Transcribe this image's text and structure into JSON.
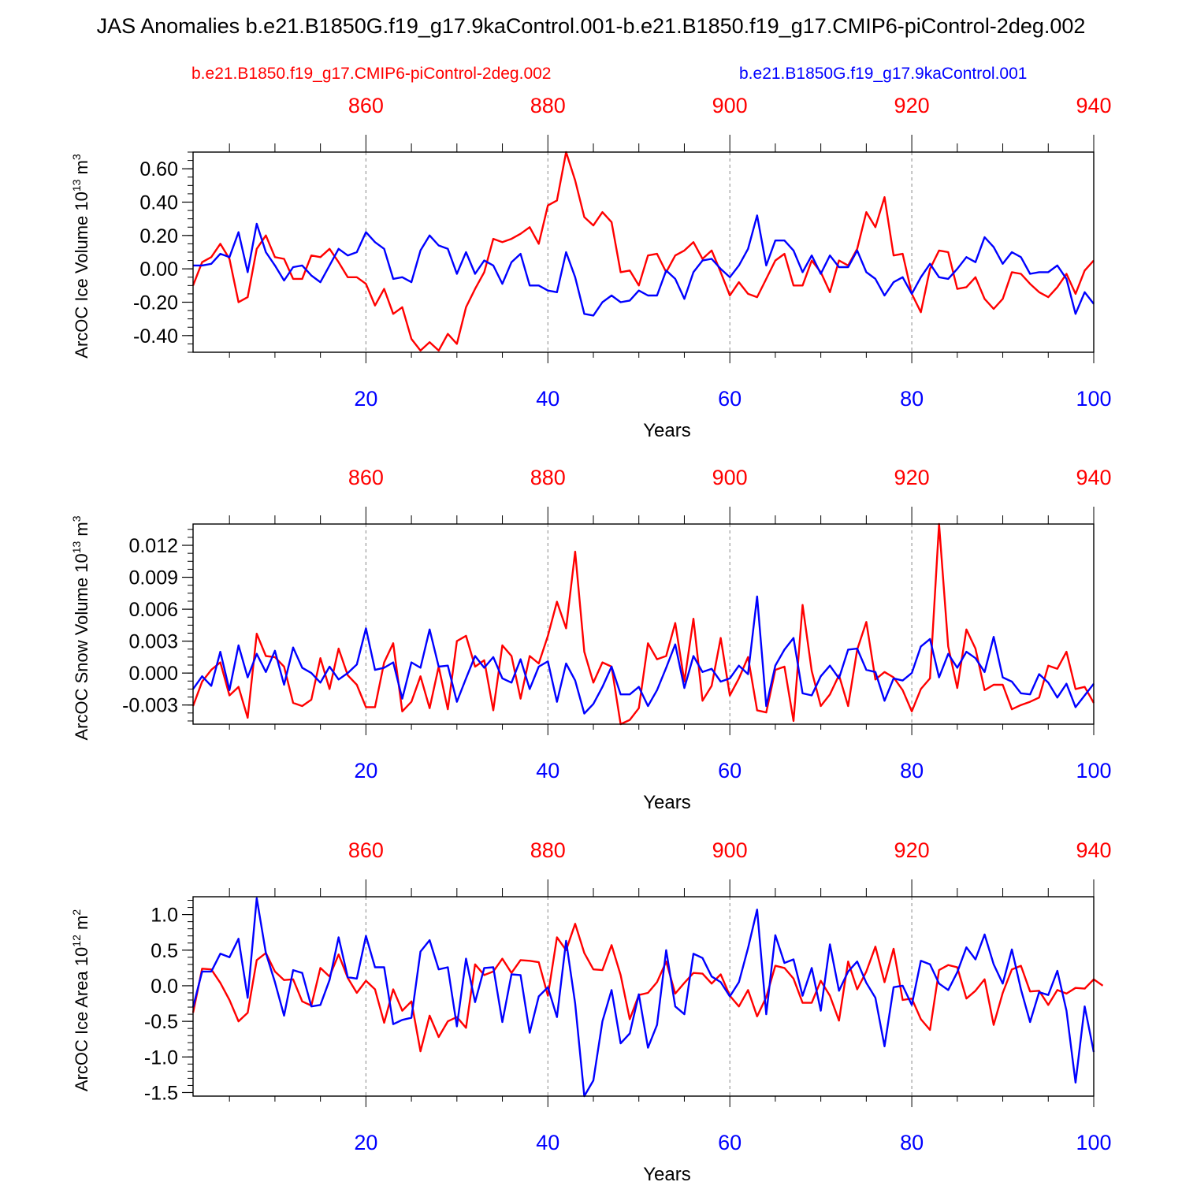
{
  "title": "JAS Anomalies b.e21.B1850G.f19_g17.9kaControl.001-b.e21.B1850.f19_g17.CMIP6-piControl-2deg.002",
  "legend": {
    "red_label": "b.e21.B1850.f19_g17.CMIP6-piControl-2deg.002",
    "blue_label": "b.e21.B1850G.f19_g17.9kaControl.001"
  },
  "colors": {
    "red": "#ff0000",
    "blue": "#0000ff",
    "axis": "#000000",
    "grid": "#888888"
  },
  "chart_data": [
    {
      "type": "line",
      "ylabel": "ArcOC Ice Volume 10",
      "ylabel_exp": "13",
      "ylabel_unit": " m",
      "ylabel_unit_exp": "3",
      "xlabel": "Years",
      "xlim": [
        1,
        100
      ],
      "ylim": [
        -0.5,
        0.7
      ],
      "yticks": [
        -0.4,
        -0.2,
        0.0,
        0.2,
        0.4,
        0.6
      ],
      "ytick_labels": [
        "-0.40",
        "-0.20",
        "0.00",
        "0.20",
        "0.40",
        "0.60"
      ],
      "yminor_step": 0.05,
      "xticks_bottom": [
        20,
        40,
        60,
        80,
        100
      ],
      "xticks_top": [
        860,
        880,
        900,
        920,
        940
      ],
      "top_year_offset": 840,
      "grid_x": [
        20,
        40,
        60,
        80
      ],
      "series": [
        {
          "name": "b.e21.B1850.f19_g17.CMIP6-piControl-2deg.002",
          "color": "red",
          "values": [
            -0.1,
            0.04,
            0.07,
            0.15,
            0.06,
            -0.2,
            -0.17,
            0.12,
            0.2,
            0.07,
            0.06,
            -0.06,
            -0.06,
            0.08,
            0.07,
            0.12,
            0.04,
            -0.05,
            -0.05,
            -0.09,
            -0.22,
            -0.12,
            -0.27,
            -0.23,
            -0.42,
            -0.49,
            -0.44,
            -0.49,
            -0.39,
            -0.45,
            -0.23,
            -0.12,
            -0.02,
            0.18,
            0.16,
            0.18,
            0.21,
            0.25,
            0.15,
            0.38,
            0.41,
            0.7,
            0.53,
            0.31,
            0.26,
            0.34,
            0.28,
            -0.02,
            -0.01,
            -0.1,
            0.08,
            0.09,
            -0.02,
            0.08,
            0.11,
            0.16,
            0.06,
            0.11,
            -0.02,
            -0.16,
            -0.08,
            -0.15,
            -0.17,
            -0.06,
            0.05,
            0.09,
            -0.1,
            -0.1,
            0.05,
            -0.02,
            -0.14,
            0.05,
            0.02,
            0.12,
            0.34,
            0.25,
            0.43,
            0.08,
            0.09,
            -0.15,
            -0.26,
            0.0,
            0.11,
            0.1,
            -0.12,
            -0.11,
            -0.05,
            -0.18,
            -0.24,
            -0.18,
            -0.02,
            -0.03,
            -0.09,
            -0.14,
            -0.17,
            -0.11,
            -0.03,
            -0.15,
            -0.01,
            0.05
          ]
        },
        {
          "name": "b.e21.B1850G.f19_g17.9kaControl.001",
          "color": "blue",
          "values": [
            0.02,
            0.02,
            0.03,
            0.09,
            0.07,
            0.22,
            -0.02,
            0.27,
            0.1,
            0.02,
            -0.07,
            0.01,
            0.02,
            -0.04,
            -0.08,
            0.02,
            0.12,
            0.08,
            0.1,
            0.22,
            0.16,
            0.12,
            -0.06,
            -0.05,
            -0.08,
            0.11,
            0.2,
            0.14,
            0.12,
            -0.03,
            0.1,
            -0.03,
            0.05,
            0.02,
            -0.09,
            0.04,
            0.09,
            -0.1,
            -0.1,
            -0.13,
            -0.14,
            0.1,
            -0.05,
            -0.27,
            -0.28,
            -0.2,
            -0.16,
            -0.2,
            -0.19,
            -0.13,
            -0.16,
            -0.16,
            -0.01,
            -0.06,
            -0.18,
            -0.02,
            0.05,
            0.06,
            0.0,
            -0.05,
            0.02,
            0.12,
            0.32,
            0.02,
            0.17,
            0.17,
            0.11,
            -0.02,
            0.08,
            -0.03,
            0.08,
            0.01,
            0.01,
            0.11,
            -0.02,
            -0.06,
            -0.16,
            -0.08,
            -0.05,
            -0.15,
            -0.05,
            0.03,
            -0.05,
            -0.06,
            0.0,
            0.07,
            0.04,
            0.19,
            0.13,
            0.03,
            0.1,
            0.07,
            -0.03,
            -0.02,
            -0.02,
            0.02,
            -0.06,
            -0.27,
            -0.14,
            -0.21
          ]
        }
      ]
    },
    {
      "type": "line",
      "ylabel": "ArcOC Snow Volume 10",
      "ylabel_exp": "13",
      "ylabel_unit": " m",
      "ylabel_unit_exp": "3",
      "xlabel": "Years",
      "xlim": [
        1,
        100
      ],
      "ylim": [
        -0.0048,
        0.014
      ],
      "yticks": [
        -0.003,
        0.0,
        0.003,
        0.006,
        0.009,
        0.012
      ],
      "ytick_labels": [
        "-0.003",
        "0.000",
        "0.003",
        "0.006",
        "0.009",
        "0.012"
      ],
      "yminor_step": 0.00075,
      "xticks_bottom": [
        20,
        40,
        60,
        80,
        100
      ],
      "xticks_top": [
        860,
        880,
        900,
        920,
        940
      ],
      "top_year_offset": 840,
      "grid_x": [
        20,
        40,
        60,
        80
      ],
      "series": [
        {
          "name": "b.e21.B1850.f19_g17.CMIP6-piControl-2deg.002",
          "color": "red",
          "values": [
            -0.0031,
            -0.0008,
            0.0003,
            0.001,
            -0.0021,
            -0.0013,
            -0.0042,
            0.0037,
            0.0016,
            0.0015,
            0.0006,
            -0.0028,
            -0.0031,
            -0.0025,
            0.0014,
            -0.0015,
            0.0023,
            -0.0002,
            -0.0011,
            -0.0032,
            -0.0032,
            0.001,
            0.0028,
            -0.0036,
            -0.0027,
            -0.0003,
            -0.0033,
            0.0006,
            -0.0034,
            0.003,
            0.0035,
            0.0006,
            0.0012,
            -0.0035,
            0.0026,
            0.0016,
            -0.0024,
            0.0016,
            0.0009,
            0.0035,
            0.0067,
            0.0042,
            0.0114,
            0.002,
            -0.0009,
            0.001,
            0.0006,
            -0.0048,
            -0.0044,
            -0.0033,
            0.0028,
            0.0013,
            0.0016,
            0.0047,
            -0.0008,
            0.0051,
            -0.0026,
            -0.0012,
            0.0033,
            -0.0021,
            -0.0005,
            0.0015,
            -0.0035,
            -0.0037,
            0.0003,
            0.0006,
            -0.0045,
            0.0064,
            0.0002,
            -0.0031,
            -0.002,
            -0.0002,
            -0.0031,
            0.0022,
            0.0048,
            -0.0006,
            0.0001,
            -0.0004,
            -0.0016,
            -0.0036,
            -0.0015,
            -0.0005,
            0.014,
            0.0025,
            -0.0014,
            0.0041,
            0.0023,
            -0.0016,
            -0.0011,
            -0.0011,
            -0.0034,
            -0.003,
            -0.0027,
            -0.0023,
            0.0007,
            0.0004,
            0.002,
            -0.0015,
            -0.0013,
            -0.0028
          ]
        },
        {
          "name": "b.e21.B1850G.f19_g17.9kaControl.001",
          "color": "blue",
          "values": [
            -0.0015,
            -0.0003,
            -0.0012,
            0.002,
            -0.0016,
            0.0026,
            -0.0004,
            0.0018,
            0.0001,
            0.0021,
            -0.0011,
            0.0024,
            0.0005,
            0.0,
            -0.0009,
            0.0006,
            -0.0006,
            0.0,
            0.0008,
            0.0042,
            0.0003,
            0.0005,
            0.001,
            -0.0024,
            0.001,
            0.0005,
            0.0041,
            0.0006,
            0.0007,
            -0.0027,
            -0.0005,
            0.0016,
            0.0005,
            0.0015,
            -0.0005,
            -0.0009,
            0.0013,
            -0.0015,
            0.0006,
            0.0011,
            -0.0027,
            0.0009,
            -0.0007,
            -0.0038,
            -0.0029,
            -0.0013,
            0.0006,
            -0.002,
            -0.002,
            -0.0013,
            -0.0031,
            -0.0016,
            0.0005,
            0.0027,
            -0.0014,
            0.0016,
            0.0001,
            0.0004,
            -0.0008,
            -0.0005,
            0.0007,
            -0.0001,
            0.0072,
            -0.0031,
            0.0007,
            0.0022,
            0.0033,
            -0.0019,
            -0.0021,
            -0.0003,
            0.0007,
            -0.0005,
            0.0022,
            0.0023,
            0.0003,
            0.0001,
            -0.0026,
            -0.0005,
            -0.0007,
            0.0,
            0.0025,
            0.0032,
            -0.0004,
            0.0018,
            0.0005,
            0.002,
            0.0014,
            0.0001,
            0.0034,
            -0.0004,
            -0.0008,
            -0.0019,
            -0.002,
            -0.0001,
            -0.0009,
            -0.0023,
            -0.001,
            -0.0032,
            -0.0021,
            -0.001
          ]
        }
      ]
    },
    {
      "type": "line",
      "ylabel": "ArcOC Ice Area 10",
      "ylabel_exp": "12",
      "ylabel_unit": " m",
      "ylabel_unit_exp": "2",
      "xlabel": "Years",
      "xlim": [
        1,
        100
      ],
      "ylim": [
        -1.55,
        1.25
      ],
      "yticks": [
        -1.5,
        -1.0,
        -0.5,
        0.0,
        0.5,
        1.0
      ],
      "ytick_labels": [
        "-1.5",
        "-1.0",
        "-0.5",
        "0.0",
        "0.5",
        "1.0"
      ],
      "yminor_step": 0.1,
      "xticks_bottom": [
        20,
        40,
        60,
        80,
        100
      ],
      "xticks_top": [
        860,
        880,
        900,
        920,
        940
      ],
      "top_year_offset": 840,
      "grid_x": [
        20,
        40,
        60,
        80
      ],
      "series": [
        {
          "name": "b.e21.B1850.f19_g17.CMIP6-piControl-2deg.002",
          "color": "red",
          "values": [
            -0.38,
            0.24,
            0.23,
            0.04,
            -0.2,
            -0.5,
            -0.38,
            0.36,
            0.46,
            0.2,
            0.08,
            0.09,
            -0.22,
            -0.28,
            0.25,
            0.13,
            0.44,
            0.11,
            -0.1,
            0.07,
            -0.05,
            -0.52,
            -0.05,
            -0.35,
            -0.22,
            -0.92,
            -0.42,
            -0.72,
            -0.5,
            -0.44,
            -0.59,
            0.3,
            0.15,
            0.2,
            0.38,
            0.18,
            0.36,
            0.35,
            0.33,
            -0.14,
            0.68,
            0.5,
            0.87,
            0.46,
            0.23,
            0.22,
            0.57,
            0.15,
            -0.47,
            -0.13,
            -0.1,
            0.05,
            0.34,
            -0.11,
            0.04,
            0.18,
            0.17,
            0.03,
            0.16,
            -0.14,
            -0.29,
            -0.06,
            -0.43,
            -0.16,
            0.28,
            0.25,
            0.1,
            -0.24,
            -0.24,
            0.07,
            -0.14,
            -0.49,
            0.34,
            -0.05,
            0.2,
            0.55,
            0.05,
            0.52,
            -0.2,
            -0.18,
            -0.47,
            -0.62,
            0.22,
            0.29,
            0.26,
            -0.18,
            -0.07,
            0.09,
            -0.55,
            -0.1,
            0.23,
            0.28,
            -0.08,
            -0.07,
            -0.27,
            -0.06,
            -0.11,
            -0.03,
            -0.04,
            0.09,
            0.0
          ]
        },
        {
          "name": "b.e21.B1850G.f19_g17.9kaControl.001",
          "color": "blue",
          "values": [
            -0.3,
            0.2,
            0.2,
            0.45,
            0.4,
            0.66,
            -0.17,
            1.23,
            0.46,
            0.05,
            -0.42,
            0.22,
            0.18,
            -0.29,
            -0.27,
            0.08,
            0.68,
            0.12,
            0.1,
            0.7,
            0.26,
            0.26,
            -0.54,
            -0.48,
            -0.45,
            0.48,
            0.64,
            0.23,
            0.26,
            -0.57,
            0.38,
            -0.23,
            0.25,
            0.26,
            -0.51,
            0.16,
            0.15,
            -0.66,
            -0.15,
            -0.02,
            -0.44,
            0.63,
            -0.25,
            -1.55,
            -1.33,
            -0.5,
            -0.06,
            -0.81,
            -0.67,
            -0.12,
            -0.87,
            -0.55,
            0.5,
            -0.29,
            -0.4,
            0.45,
            0.39,
            0.13,
            0.05,
            -0.15,
            0.05,
            0.53,
            1.07,
            -0.4,
            0.71,
            0.32,
            0.37,
            -0.14,
            0.25,
            -0.35,
            0.58,
            -0.07,
            0.2,
            0.34,
            0.04,
            -0.17,
            -0.85,
            -0.02,
            0.0,
            -0.27,
            0.35,
            0.3,
            0.03,
            -0.06,
            0.19,
            0.54,
            0.37,
            0.72,
            0.3,
            0.03,
            0.51,
            -0.05,
            -0.51,
            -0.09,
            -0.13,
            0.21,
            -0.35,
            -1.36,
            -0.29,
            -0.93
          ]
        }
      ]
    }
  ]
}
